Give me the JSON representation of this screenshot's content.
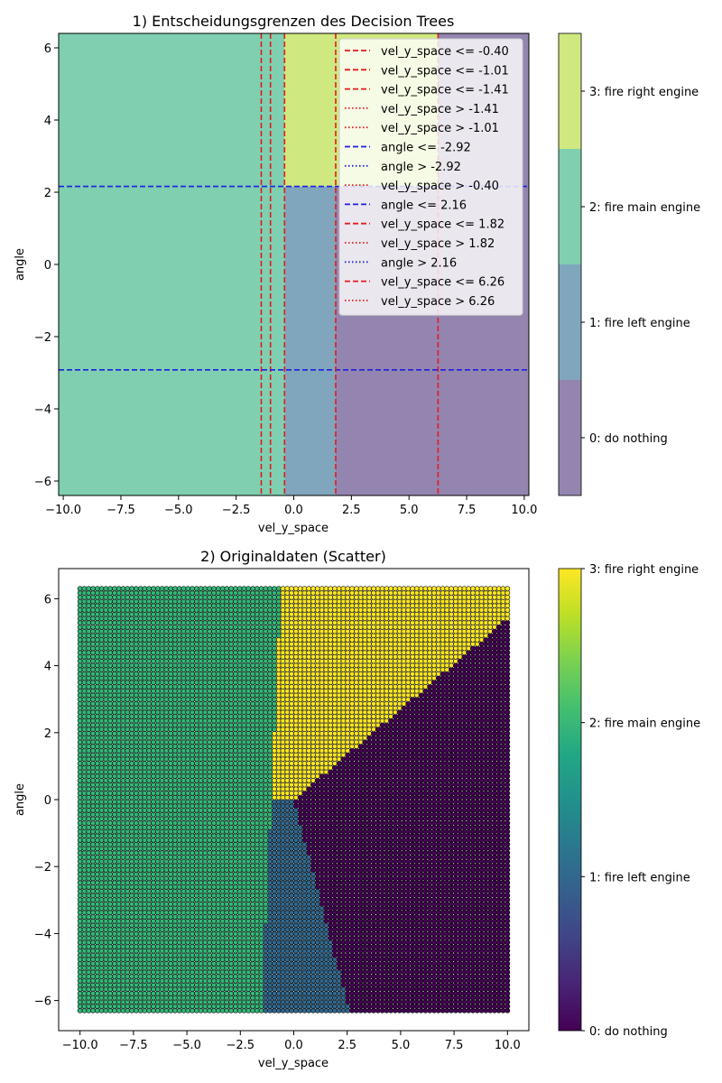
{
  "chart_data": [
    {
      "type": "heatmap",
      "title": "1) Entscheidungsgrenzen des Decision Trees",
      "xlabel": "vel_y_space",
      "ylabel": "angle",
      "xlim": [
        -10.2,
        10.2
      ],
      "ylim": [
        -6.4,
        6.4
      ],
      "xticks": [
        -10.0,
        -7.5,
        -5.0,
        -2.5,
        0.0,
        2.5,
        5.0,
        7.5,
        10.0
      ],
      "yticks": [
        -6,
        -4,
        -2,
        0,
        2,
        4,
        6
      ],
      "xtick_labels": [
        "−10.0",
        "−7.5",
        "−5.0",
        "−2.5",
        "0.0",
        "2.5",
        "5.0",
        "7.5",
        "10.0"
      ],
      "ytick_labels": [
        "−6",
        "−4",
        "−2",
        "0",
        "2",
        "4",
        "6"
      ],
      "regions": [
        {
          "x": [
            -10.2,
            -0.4
          ],
          "y": [
            -6.4,
            6.4
          ],
          "class": 2
        },
        {
          "x": [
            -0.4,
            6.26
          ],
          "y": [
            2.16,
            6.4
          ],
          "class": 3
        },
        {
          "x": [
            6.26,
            10.2
          ],
          "y": [
            2.16,
            6.4
          ],
          "class": 0
        },
        {
          "x": [
            -0.4,
            1.82
          ],
          "y": [
            -6.4,
            2.16
          ],
          "class": 1
        },
        {
          "x": [
            1.82,
            10.2
          ],
          "y": [
            -6.4,
            2.16
          ],
          "class": 0
        }
      ],
      "class_colors": [
        "#9485b0",
        "#7fa6bc",
        "#7fcfb0",
        "#cfe87f"
      ],
      "split_lines": [
        {
          "feature": "vel_y_space",
          "value": -0.4
        },
        {
          "feature": "vel_y_space",
          "value": -1.01
        },
        {
          "feature": "vel_y_space",
          "value": -1.41
        },
        {
          "feature": "angle",
          "value": -2.92
        },
        {
          "feature": "angle",
          "value": 2.16
        },
        {
          "feature": "vel_y_space",
          "value": 1.82
        },
        {
          "feature": "vel_y_space",
          "value": 6.26
        }
      ],
      "legend": {
        "placement": "top-right",
        "entries": [
          {
            "label": "vel_y_space <= -0.40",
            "color": "#e41a1c",
            "style": "dashed"
          },
          {
            "label": "vel_y_space <= -1.01",
            "color": "#e41a1c",
            "style": "dashed"
          },
          {
            "label": "vel_y_space <= -1.41",
            "color": "#e41a1c",
            "style": "dashed"
          },
          {
            "label": "vel_y_space > -1.41",
            "color": "#e41a1c",
            "style": "dotted"
          },
          {
            "label": "vel_y_space > -1.01",
            "color": "#e41a1c",
            "style": "dotted"
          },
          {
            "label": "angle <= -2.92",
            "color": "#1f1fe0",
            "style": "dashed"
          },
          {
            "label": "angle > -2.92",
            "color": "#1f1fe0",
            "style": "dotted"
          },
          {
            "label": "vel_y_space > -0.40",
            "color": "#e41a1c",
            "style": "dotted"
          },
          {
            "label": "angle <= 2.16",
            "color": "#1f1fe0",
            "style": "dashed"
          },
          {
            "label": "vel_y_space <= 1.82",
            "color": "#e41a1c",
            "style": "dashed"
          },
          {
            "label": "vel_y_space > 1.82",
            "color": "#e41a1c",
            "style": "dotted"
          },
          {
            "label": "angle > 2.16",
            "color": "#1f1fe0",
            "style": "dotted"
          },
          {
            "label": "vel_y_space <= 6.26",
            "color": "#e41a1c",
            "style": "dashed"
          },
          {
            "label": "vel_y_space > 6.26",
            "color": "#e41a1c",
            "style": "dotted"
          }
        ]
      },
      "colorbar": {
        "labels": [
          "0: do nothing",
          "1: fire left engine",
          "2: fire main engine",
          "3: fire right engine"
        ]
      }
    },
    {
      "type": "scatter",
      "title": "2) Originaldaten (Scatter)",
      "xlabel": "vel_y_space",
      "ylabel": "angle",
      "xlim": [
        -11.0,
        11.0
      ],
      "ylim": [
        -6.9,
        6.9
      ],
      "xticks": [
        -10.0,
        -7.5,
        -5.0,
        -2.5,
        0.0,
        2.5,
        5.0,
        7.5,
        10.0
      ],
      "yticks": [
        -6,
        -4,
        -2,
        0,
        2,
        4,
        6
      ],
      "xtick_labels": [
        "−10.0",
        "−7.5",
        "−5.0",
        "−2.5",
        "0.0",
        "2.5",
        "5.0",
        "7.5",
        "10.0"
      ],
      "ytick_labels": [
        "−6",
        "−4",
        "−2",
        "0",
        "2",
        "4",
        "6"
      ],
      "grid": {
        "x_range": [
          -10.0,
          10.0
        ],
        "y_range": [
          -6.3,
          6.3
        ],
        "description": "uniform grid of points; class determined by region boundaries below"
      },
      "class_boundaries": {
        "main_engine_right_edge": [
          [
            -1.5,
            -6.3
          ],
          [
            -0.6,
            6.3
          ]
        ],
        "right_engine_lower_diagonal": [
          [
            0.0,
            0.0
          ],
          [
            10.0,
            5.4
          ]
        ],
        "left_engine_right_edge": [
          [
            0.0,
            0.0
          ],
          [
            2.6,
            -6.3
          ]
        ]
      },
      "class_colors": [
        "#440154",
        "#31688e",
        "#35b779",
        "#fde725"
      ],
      "colorbar": {
        "ticks": [
          0,
          1,
          2,
          3
        ],
        "labels": [
          "0: do nothing",
          "1: fire left engine",
          "2: fire main engine",
          "3: fire right engine"
        ]
      }
    }
  ]
}
